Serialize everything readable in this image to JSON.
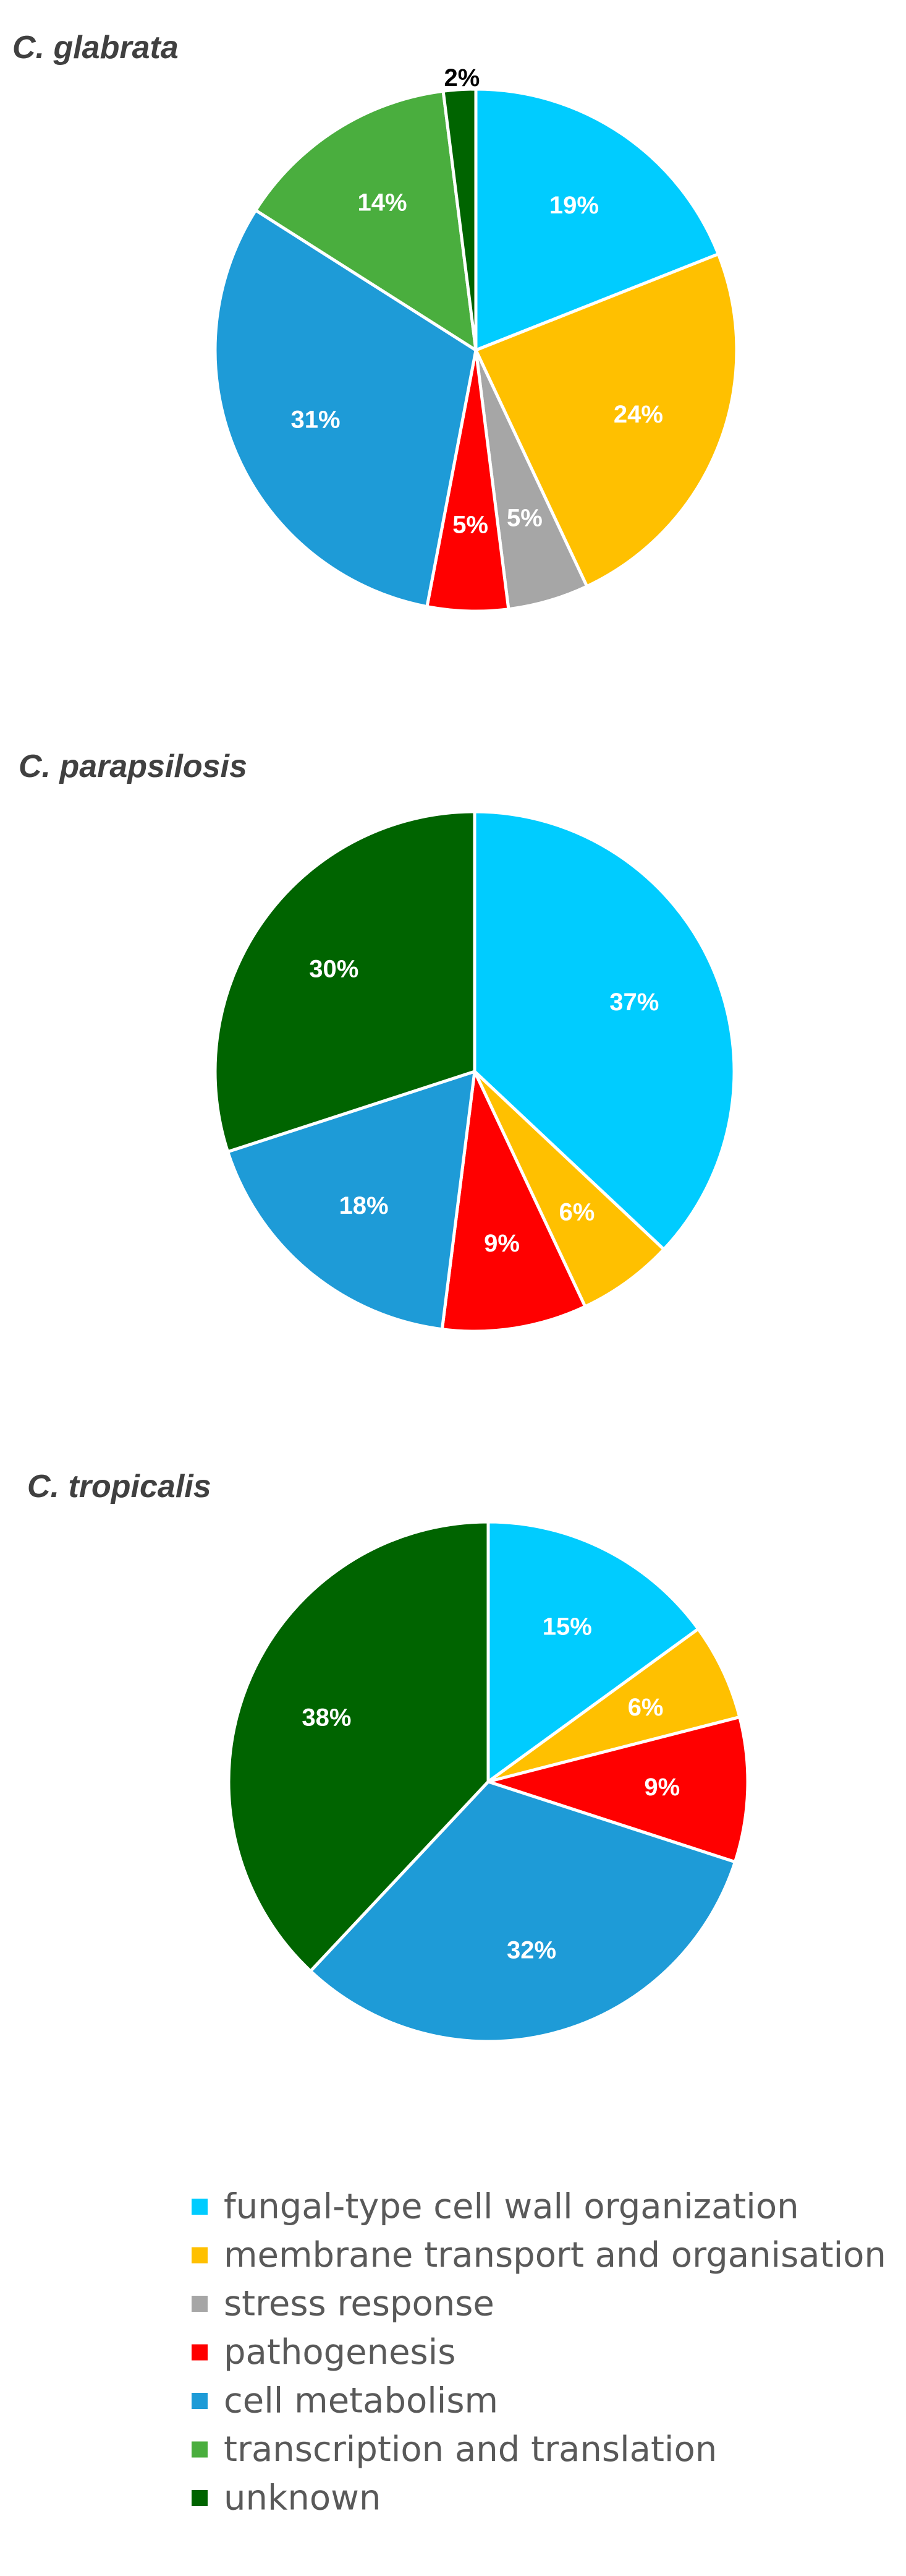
{
  "chart_data": [
    {
      "type": "pie",
      "title": "C. glabrata",
      "slices": [
        {
          "category": "fungal-type cell wall organization",
          "value": 19,
          "label": "19%"
        },
        {
          "category": "membrane transport and organisation",
          "value": 24,
          "label": "24%"
        },
        {
          "category": "stress response",
          "value": 5,
          "label": "5%"
        },
        {
          "category": "pathogenesis",
          "value": 5,
          "label": "5%"
        },
        {
          "category": "cell metabolism",
          "value": 31,
          "label": "31%"
        },
        {
          "category": "transcription and translation",
          "value": 14,
          "label": "14%"
        },
        {
          "category": "unknown",
          "value": 2,
          "label": "2%"
        }
      ]
    },
    {
      "type": "pie",
      "title": "C. parapsilosis",
      "slices": [
        {
          "category": "fungal-type cell wall organization",
          "value": 37,
          "label": "37%"
        },
        {
          "category": "membrane transport and organisation",
          "value": 6,
          "label": "6%"
        },
        {
          "category": "pathogenesis",
          "value": 9,
          "label": "9%"
        },
        {
          "category": "cell metabolism",
          "value": 18,
          "label": "18%"
        },
        {
          "category": "unknown",
          "value": 30,
          "label": "30%"
        }
      ]
    },
    {
      "type": "pie",
      "title": "C. tropicalis",
      "slices": [
        {
          "category": "fungal-type cell wall organization",
          "value": 15,
          "label": "15%"
        },
        {
          "category": "membrane transport and organisation",
          "value": 6,
          "label": "6%"
        },
        {
          "category": "pathogenesis",
          "value": 9,
          "label": "9%"
        },
        {
          "category": "cell metabolism",
          "value": 32,
          "label": "32%"
        },
        {
          "category": "unknown",
          "value": 38,
          "label": "38%"
        }
      ]
    }
  ],
  "legend": {
    "placement": "bottom",
    "entries": [
      {
        "label": "fungal-type cell wall organization",
        "color": "#00CCFF"
      },
      {
        "label": "membrane transport and organisation",
        "color": "#FFC000"
      },
      {
        "label": "stress response",
        "color": "#A6A6A6"
      },
      {
        "label": "pathogenesis",
        "color": "#FF0000"
      },
      {
        "label": "cell metabolism",
        "color": "#1E9BD7"
      },
      {
        "label": "transcription and translation",
        "color": "#4AAE3E"
      },
      {
        "label": "unknown",
        "color": "#006400"
      }
    ]
  },
  "label_colors": {
    "unknown": "#000000"
  }
}
